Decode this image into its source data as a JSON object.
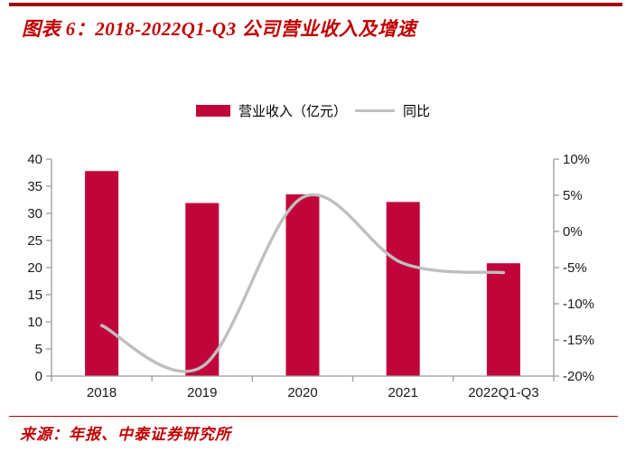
{
  "header": {
    "title": "图表 6：2018-2022Q1-Q3 公司营业收入及增速"
  },
  "colors": {
    "top_rule": "#A40404",
    "title_text": "#C00000",
    "bar_red": "#C1053B",
    "line_gray": "#BFBFBF",
    "axis_gray": "#9C9C9C",
    "tick_text": "#1A1A1A",
    "divider": "#C00000",
    "source_text": "#C00000"
  },
  "legend": {
    "items": [
      {
        "label": "营业收入（亿元）",
        "marker": "swatch"
      },
      {
        "label": "同比",
        "marker": "line"
      }
    ]
  },
  "chart_data": {
    "type": "bar",
    "categories": [
      "2018",
      "2019",
      "2020",
      "2021",
      "2022Q1-Q3"
    ],
    "series": [
      {
        "name": "营业收入（亿元）",
        "type": "bar",
        "axis": "left",
        "values": [
          37.8,
          31.9,
          33.5,
          32.1,
          20.8
        ]
      },
      {
        "name": "同比",
        "type": "line",
        "axis": "right",
        "unit": "%",
        "values": [
          -13.0,
          -18.7,
          4.7,
          -4.4,
          -5.7
        ]
      }
    ],
    "title": "2018-2022Q1-Q3 公司营业收入及增速",
    "xlabel": "",
    "ylabel_left": "营业收入（亿元）",
    "ylabel_right": "同比",
    "left_axis": {
      "min": 0,
      "max": 40,
      "step": 5,
      "suffix": ""
    },
    "right_axis": {
      "min": -20,
      "max": 10,
      "step": 5,
      "suffix": "%"
    },
    "grid": false,
    "legend_position": "top",
    "line_smooth": true
  },
  "footer": {
    "source": "来源：年报、中泰证券研究所"
  }
}
